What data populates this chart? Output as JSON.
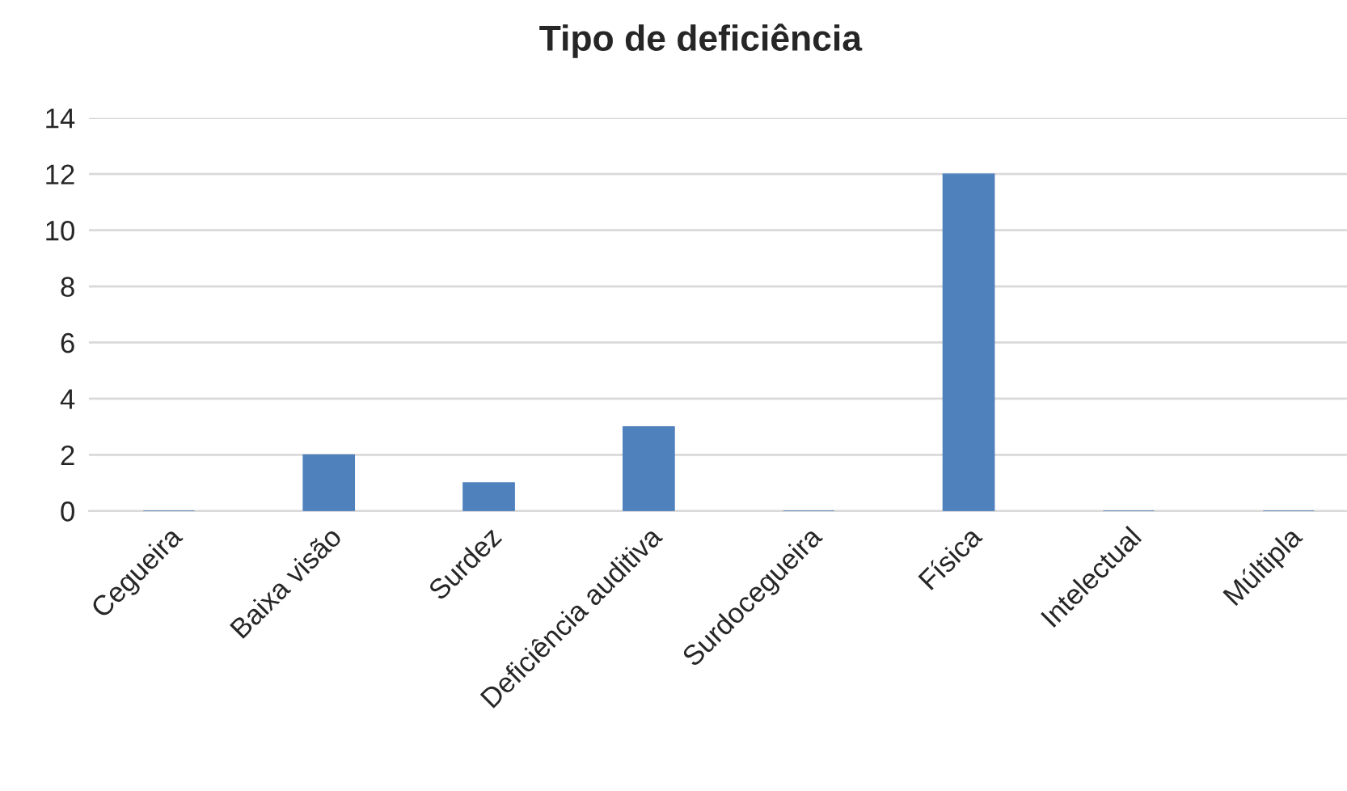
{
  "chart_data": {
    "type": "bar",
    "title": "Tipo de deficiência",
    "categories": [
      "Cegueira",
      "Baixa visão",
      "Surdez",
      "Deficiência auditiva",
      "Surdocegueira",
      "Física",
      "Intelectual",
      "Múltipla"
    ],
    "values": [
      0,
      2,
      1,
      3,
      0,
      12,
      0,
      0
    ],
    "color": "#4f81bd",
    "ylim": [
      0,
      14
    ],
    "yticks": [
      0,
      2,
      4,
      6,
      8,
      10,
      12,
      14
    ],
    "grid": "y",
    "legend": false
  }
}
